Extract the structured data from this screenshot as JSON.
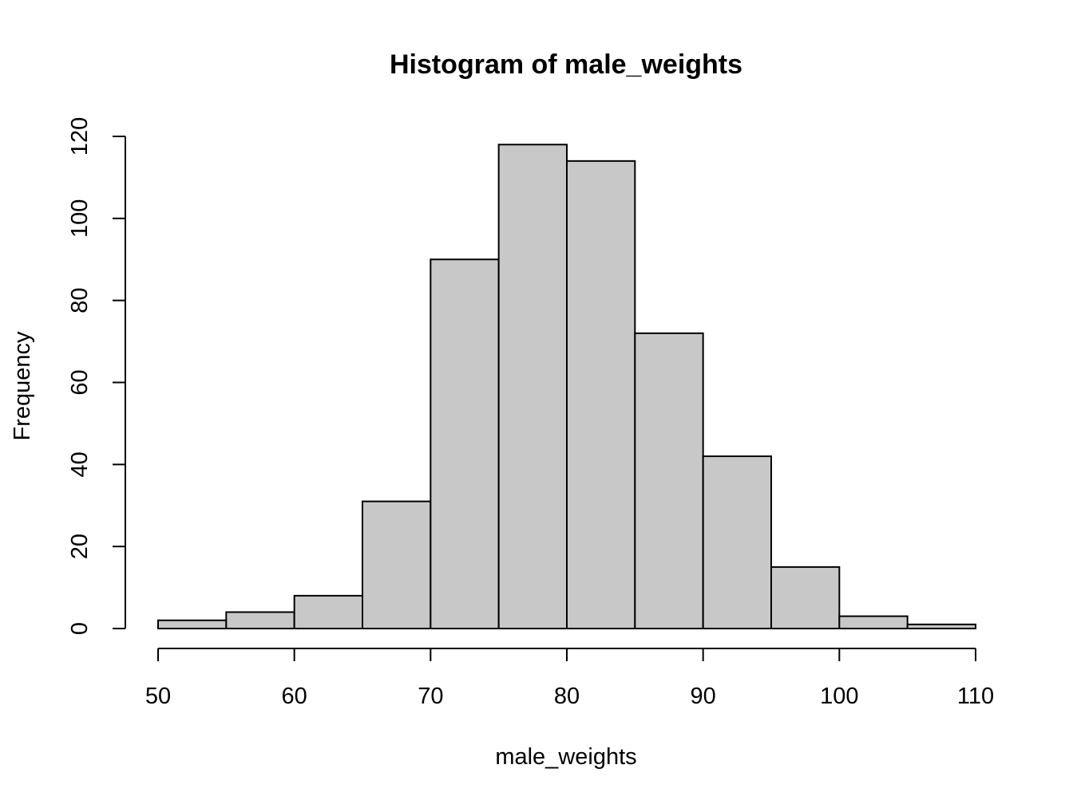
{
  "chart_data": {
    "type": "bar",
    "subtype": "histogram",
    "title": "Histogram of male_weights",
    "xlabel": "male_weights",
    "ylabel": "Frequency",
    "bins": [
      {
        "from": 50,
        "to": 55,
        "count": 2
      },
      {
        "from": 55,
        "to": 60,
        "count": 4
      },
      {
        "from": 60,
        "to": 65,
        "count": 8
      },
      {
        "from": 65,
        "to": 70,
        "count": 31
      },
      {
        "from": 70,
        "to": 75,
        "count": 90
      },
      {
        "from": 75,
        "to": 80,
        "count": 118
      },
      {
        "from": 80,
        "to": 85,
        "count": 114
      },
      {
        "from": 85,
        "to": 90,
        "count": 72
      },
      {
        "from": 90,
        "to": 95,
        "count": 42
      },
      {
        "from": 95,
        "to": 100,
        "count": 15
      },
      {
        "from": 100,
        "to": 105,
        "count": 3
      },
      {
        "from": 105,
        "to": 110,
        "count": 1
      }
    ],
    "xlim": [
      50,
      110
    ],
    "ylim": [
      0,
      120
    ],
    "x_ticks": [
      50,
      60,
      70,
      80,
      90,
      100,
      110
    ],
    "y_ticks": [
      0,
      20,
      40,
      60,
      80,
      100,
      120
    ],
    "grid": false,
    "legend": "none",
    "bar_fill": "#c8c8c8",
    "bar_stroke": "#000000"
  }
}
